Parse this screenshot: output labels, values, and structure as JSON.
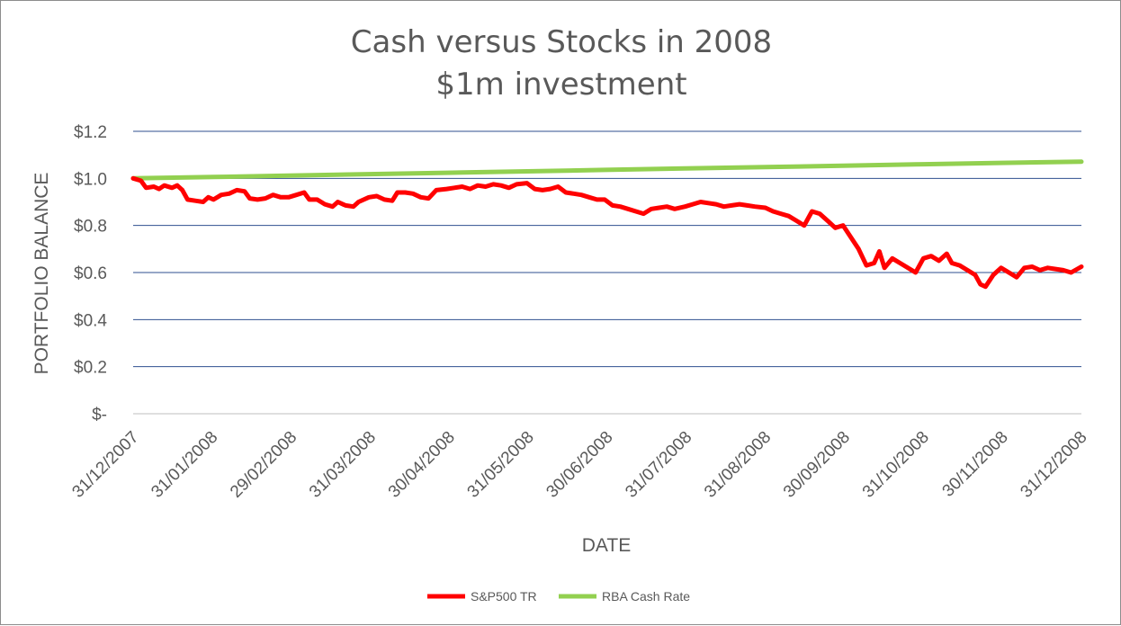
{
  "chart_data": {
    "type": "line",
    "title": "Cash versus Stocks in 2008",
    "subtitle": "$1m investment",
    "xlabel": "DATE",
    "ylabel": "PORTFOLIO BALANCE",
    "ylim": [
      0,
      1.2
    ],
    "y_ticks": [
      {
        "value": 0,
        "label": "$-"
      },
      {
        "value": 0.2,
        "label": "$0.2"
      },
      {
        "value": 0.4,
        "label": "$0.4"
      },
      {
        "value": 0.6,
        "label": "$0.6"
      },
      {
        "value": 0.8,
        "label": "$0.8"
      },
      {
        "value": 1.0,
        "label": "$1.0"
      },
      {
        "value": 1.2,
        "label": "$1.2"
      }
    ],
    "x_ticks": [
      "31/12/2007",
      "31/01/2008",
      "29/02/2008",
      "31/03/2008",
      "30/04/2008",
      "31/05/2008",
      "30/06/2008",
      "31/07/2008",
      "31/08/2008",
      "30/09/2008",
      "31/10/2008",
      "30/11/2008",
      "31/12/2008"
    ],
    "grid": true,
    "legend_position": "bottom",
    "series": [
      {
        "name": "S&P500 TR",
        "color": "#ff0000",
        "points": [
          [
            "2007-12-31",
            1.0
          ],
          [
            "2008-01-03",
            0.99
          ],
          [
            "2008-01-05",
            0.96
          ],
          [
            "2008-01-08",
            0.965
          ],
          [
            "2008-01-10",
            0.955
          ],
          [
            "2008-01-12",
            0.97
          ],
          [
            "2008-01-15",
            0.96
          ],
          [
            "2008-01-17",
            0.97
          ],
          [
            "2008-01-19",
            0.95
          ],
          [
            "2008-01-21",
            0.91
          ],
          [
            "2008-01-24",
            0.905
          ],
          [
            "2008-01-27",
            0.9
          ],
          [
            "2008-01-29",
            0.92
          ],
          [
            "2008-01-31",
            0.91
          ],
          [
            "2008-02-03",
            0.93
          ],
          [
            "2008-02-06",
            0.935
          ],
          [
            "2008-02-09",
            0.95
          ],
          [
            "2008-02-12",
            0.945
          ],
          [
            "2008-02-14",
            0.915
          ],
          [
            "2008-02-17",
            0.91
          ],
          [
            "2008-02-20",
            0.915
          ],
          [
            "2008-02-23",
            0.93
          ],
          [
            "2008-02-26",
            0.92
          ],
          [
            "2008-02-29",
            0.92
          ],
          [
            "2008-03-03",
            0.93
          ],
          [
            "2008-03-06",
            0.94
          ],
          [
            "2008-03-08",
            0.91
          ],
          [
            "2008-03-11",
            0.91
          ],
          [
            "2008-03-14",
            0.89
          ],
          [
            "2008-03-17",
            0.88
          ],
          [
            "2008-03-19",
            0.9
          ],
          [
            "2008-03-22",
            0.885
          ],
          [
            "2008-03-25",
            0.88
          ],
          [
            "2008-03-27",
            0.9
          ],
          [
            "2008-03-31",
            0.92
          ],
          [
            "2008-04-03",
            0.925
          ],
          [
            "2008-04-06",
            0.91
          ],
          [
            "2008-04-09",
            0.905
          ],
          [
            "2008-04-11",
            0.94
          ],
          [
            "2008-04-14",
            0.94
          ],
          [
            "2008-04-17",
            0.935
          ],
          [
            "2008-04-20",
            0.92
          ],
          [
            "2008-04-23",
            0.915
          ],
          [
            "2008-04-26",
            0.95
          ],
          [
            "2008-04-30",
            0.955
          ],
          [
            "2008-05-03",
            0.96
          ],
          [
            "2008-05-06",
            0.965
          ],
          [
            "2008-05-09",
            0.955
          ],
          [
            "2008-05-12",
            0.97
          ],
          [
            "2008-05-15",
            0.965
          ],
          [
            "2008-05-18",
            0.975
          ],
          [
            "2008-05-21",
            0.97
          ],
          [
            "2008-05-24",
            0.96
          ],
          [
            "2008-05-27",
            0.975
          ],
          [
            "2008-05-31",
            0.98
          ],
          [
            "2008-06-03",
            0.955
          ],
          [
            "2008-06-06",
            0.95
          ],
          [
            "2008-06-09",
            0.955
          ],
          [
            "2008-06-12",
            0.965
          ],
          [
            "2008-06-15",
            0.94
          ],
          [
            "2008-06-18",
            0.935
          ],
          [
            "2008-06-21",
            0.93
          ],
          [
            "2008-06-24",
            0.92
          ],
          [
            "2008-06-27",
            0.91
          ],
          [
            "2008-06-30",
            0.91
          ],
          [
            "2008-07-03",
            0.885
          ],
          [
            "2008-07-06",
            0.88
          ],
          [
            "2008-07-09",
            0.87
          ],
          [
            "2008-07-12",
            0.86
          ],
          [
            "2008-07-15",
            0.85
          ],
          [
            "2008-07-18",
            0.87
          ],
          [
            "2008-07-21",
            0.875
          ],
          [
            "2008-07-24",
            0.88
          ],
          [
            "2008-07-27",
            0.87
          ],
          [
            "2008-07-31",
            0.88
          ],
          [
            "2008-08-03",
            0.89
          ],
          [
            "2008-08-06",
            0.9
          ],
          [
            "2008-08-09",
            0.895
          ],
          [
            "2008-08-12",
            0.89
          ],
          [
            "2008-08-15",
            0.88
          ],
          [
            "2008-08-18",
            0.885
          ],
          [
            "2008-08-21",
            0.89
          ],
          [
            "2008-08-24",
            0.885
          ],
          [
            "2008-08-27",
            0.88
          ],
          [
            "2008-08-31",
            0.875
          ],
          [
            "2008-09-03",
            0.86
          ],
          [
            "2008-09-06",
            0.85
          ],
          [
            "2008-09-09",
            0.84
          ],
          [
            "2008-09-12",
            0.82
          ],
          [
            "2008-09-15",
            0.8
          ],
          [
            "2008-09-18",
            0.86
          ],
          [
            "2008-09-21",
            0.85
          ],
          [
            "2008-09-24",
            0.82
          ],
          [
            "2008-09-27",
            0.79
          ],
          [
            "2008-09-30",
            0.8
          ],
          [
            "2008-10-03",
            0.75
          ],
          [
            "2008-10-06",
            0.7
          ],
          [
            "2008-10-09",
            0.63
          ],
          [
            "2008-10-12",
            0.64
          ],
          [
            "2008-10-14",
            0.69
          ],
          [
            "2008-10-16",
            0.62
          ],
          [
            "2008-10-19",
            0.66
          ],
          [
            "2008-10-22",
            0.64
          ],
          [
            "2008-10-25",
            0.62
          ],
          [
            "2008-10-28",
            0.6
          ],
          [
            "2008-10-31",
            0.66
          ],
          [
            "2008-11-03",
            0.67
          ],
          [
            "2008-11-06",
            0.65
          ],
          [
            "2008-11-09",
            0.68
          ],
          [
            "2008-11-11",
            0.64
          ],
          [
            "2008-11-14",
            0.63
          ],
          [
            "2008-11-17",
            0.61
          ],
          [
            "2008-11-20",
            0.59
          ],
          [
            "2008-11-22",
            0.55
          ],
          [
            "2008-11-24",
            0.54
          ],
          [
            "2008-11-27",
            0.59
          ],
          [
            "2008-11-30",
            0.62
          ],
          [
            "2008-12-03",
            0.6
          ],
          [
            "2008-12-06",
            0.58
          ],
          [
            "2008-12-09",
            0.62
          ],
          [
            "2008-12-12",
            0.625
          ],
          [
            "2008-12-15",
            0.61
          ],
          [
            "2008-12-18",
            0.62
          ],
          [
            "2008-12-21",
            0.615
          ],
          [
            "2008-12-24",
            0.61
          ],
          [
            "2008-12-27",
            0.6
          ],
          [
            "2008-12-31",
            0.625
          ]
        ]
      },
      {
        "name": "RBA Cash Rate",
        "color": "#92d050",
        "points": [
          [
            "2007-12-31",
            1.0
          ],
          [
            "2008-01-31",
            1.006
          ],
          [
            "2008-02-29",
            1.012
          ],
          [
            "2008-03-31",
            1.018
          ],
          [
            "2008-04-30",
            1.024
          ],
          [
            "2008-05-31",
            1.03
          ],
          [
            "2008-06-30",
            1.036
          ],
          [
            "2008-07-31",
            1.042
          ],
          [
            "2008-08-31",
            1.048
          ],
          [
            "2008-09-30",
            1.054
          ],
          [
            "2008-10-31",
            1.06
          ],
          [
            "2008-11-30",
            1.066
          ],
          [
            "2008-12-31",
            1.071
          ]
        ]
      }
    ]
  }
}
